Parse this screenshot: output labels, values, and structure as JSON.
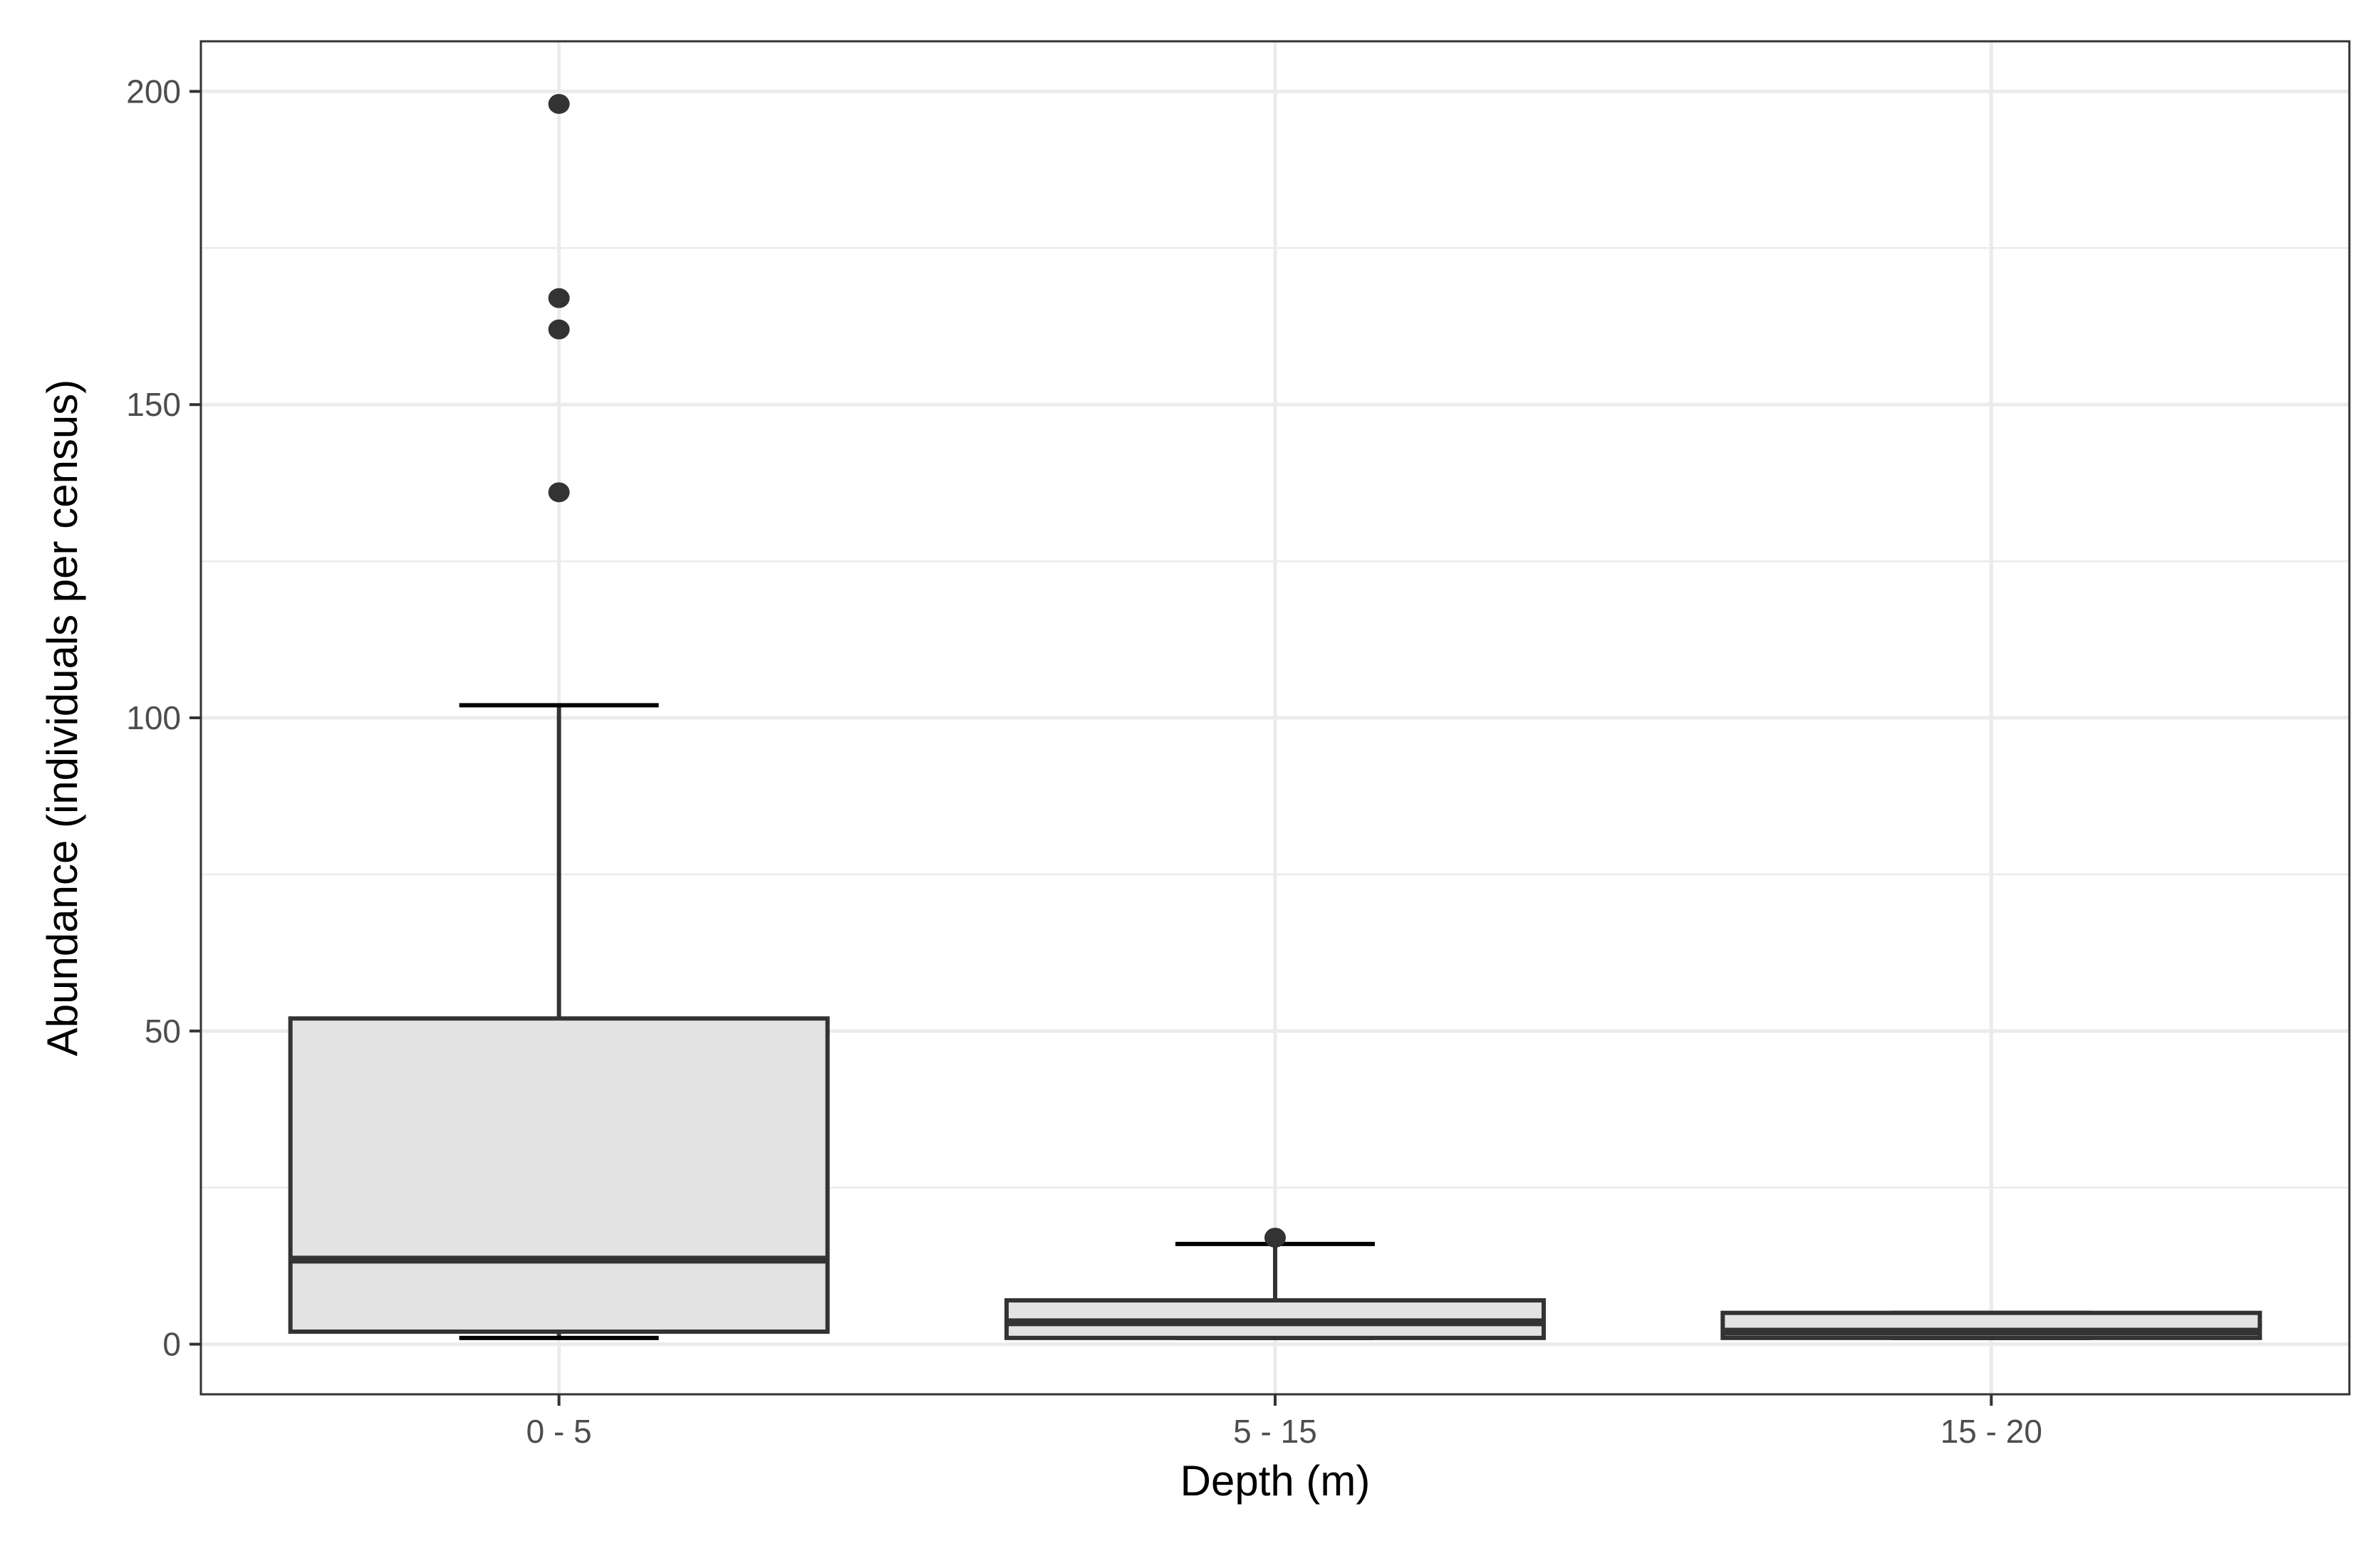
{
  "chart_data": {
    "type": "box",
    "xlabel": "Depth (m)",
    "ylabel": "Abundance (individuals per census)",
    "ylim": [
      -8,
      208
    ],
    "y_ticks": [
      0,
      50,
      100,
      150,
      200
    ],
    "y_tick_labels": [
      "0",
      "50",
      "100",
      "150",
      "200"
    ],
    "grid": true,
    "categories": [
      "0 - 5",
      "5 - 15",
      "15 - 20"
    ],
    "boxes": [
      {
        "category": "0 - 5",
        "whisker_low": 1,
        "q1": 2,
        "median": 13.5,
        "q3": 52,
        "whisker_high": 102,
        "outliers": [
          136,
          162,
          167,
          198
        ]
      },
      {
        "category": "5 - 15",
        "whisker_low": 1,
        "q1": 1,
        "median": 3.5,
        "q3": 7,
        "whisker_high": 16,
        "outliers": [
          17
        ]
      },
      {
        "category": "15 - 20",
        "whisker_low": 1,
        "q1": 1,
        "median": 2,
        "q3": 5,
        "whisker_high": 5,
        "outliers": []
      }
    ],
    "colors": {
      "box_fill": "#e3e3e3",
      "box_stroke": "#333333",
      "grid": "#ebebeb",
      "panel_border": "#333333",
      "outlier": "#333333"
    }
  }
}
